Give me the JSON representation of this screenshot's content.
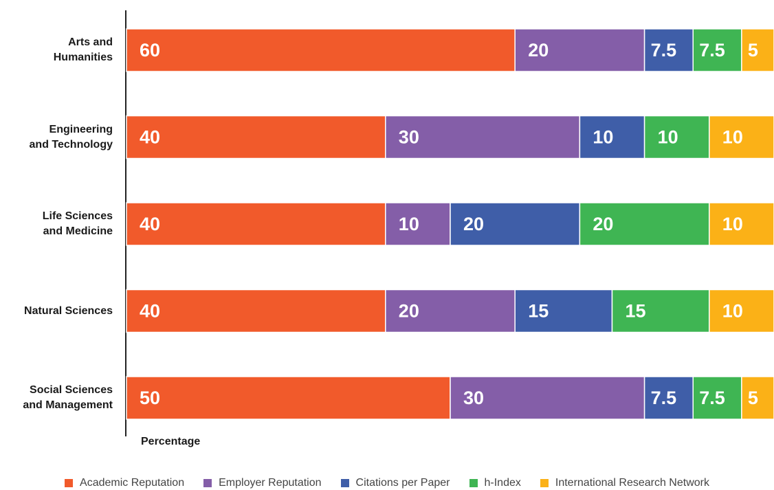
{
  "chart_data": {
    "type": "stacked-bar-horizontal",
    "x_label": "Percentage",
    "categories": [
      "Arts and\nHumanities",
      "Engineering\nand Technology",
      "Life Sciences\nand Medicine",
      "Natural Sciences",
      "Social Sciences\nand Management"
    ],
    "xlim": [
      0,
      100
    ],
    "series": [
      {
        "name": "Academic Reputation",
        "color": "#f15a2b",
        "values": [
          60,
          40,
          40,
          40,
          50
        ]
      },
      {
        "name": "Employer Reputation",
        "color": "#845ea8",
        "values": [
          20,
          30,
          10,
          20,
          30
        ]
      },
      {
        "name": "Citations per Paper",
        "color": "#3f5ea8",
        "values": [
          7.5,
          10,
          20,
          15,
          7.5
        ]
      },
      {
        "name": "h-Index",
        "color": "#3fb553",
        "values": [
          7.5,
          10,
          20,
          15,
          7.5
        ]
      },
      {
        "name": "International Research Network",
        "color": "#fbb117",
        "values": [
          5,
          10,
          10,
          10,
          5
        ]
      }
    ]
  }
}
